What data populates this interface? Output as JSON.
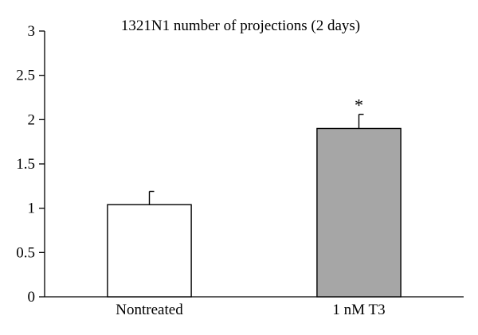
{
  "chart_data": {
    "type": "bar",
    "title": "1321N1 number of projections (2 days)",
    "xlabel": "",
    "ylabel": "",
    "categories": [
      "Nontreated",
      "1 nM T3"
    ],
    "values": [
      1.04,
      1.9
    ],
    "error": [
      0.15,
      0.16
    ],
    "significance": [
      "",
      "*"
    ],
    "bar_colors": [
      "#ffffff",
      "#a6a6a6"
    ],
    "bar_stroke": "#000000",
    "ylim": [
      0,
      3
    ],
    "yticks": [
      0,
      0.5,
      1,
      1.5,
      2,
      2.5,
      3
    ],
    "ytick_labels": [
      "0",
      "0.5",
      "1",
      "1.5",
      "2",
      "2.5",
      "3"
    ],
    "grid": false,
    "legend": "none"
  }
}
